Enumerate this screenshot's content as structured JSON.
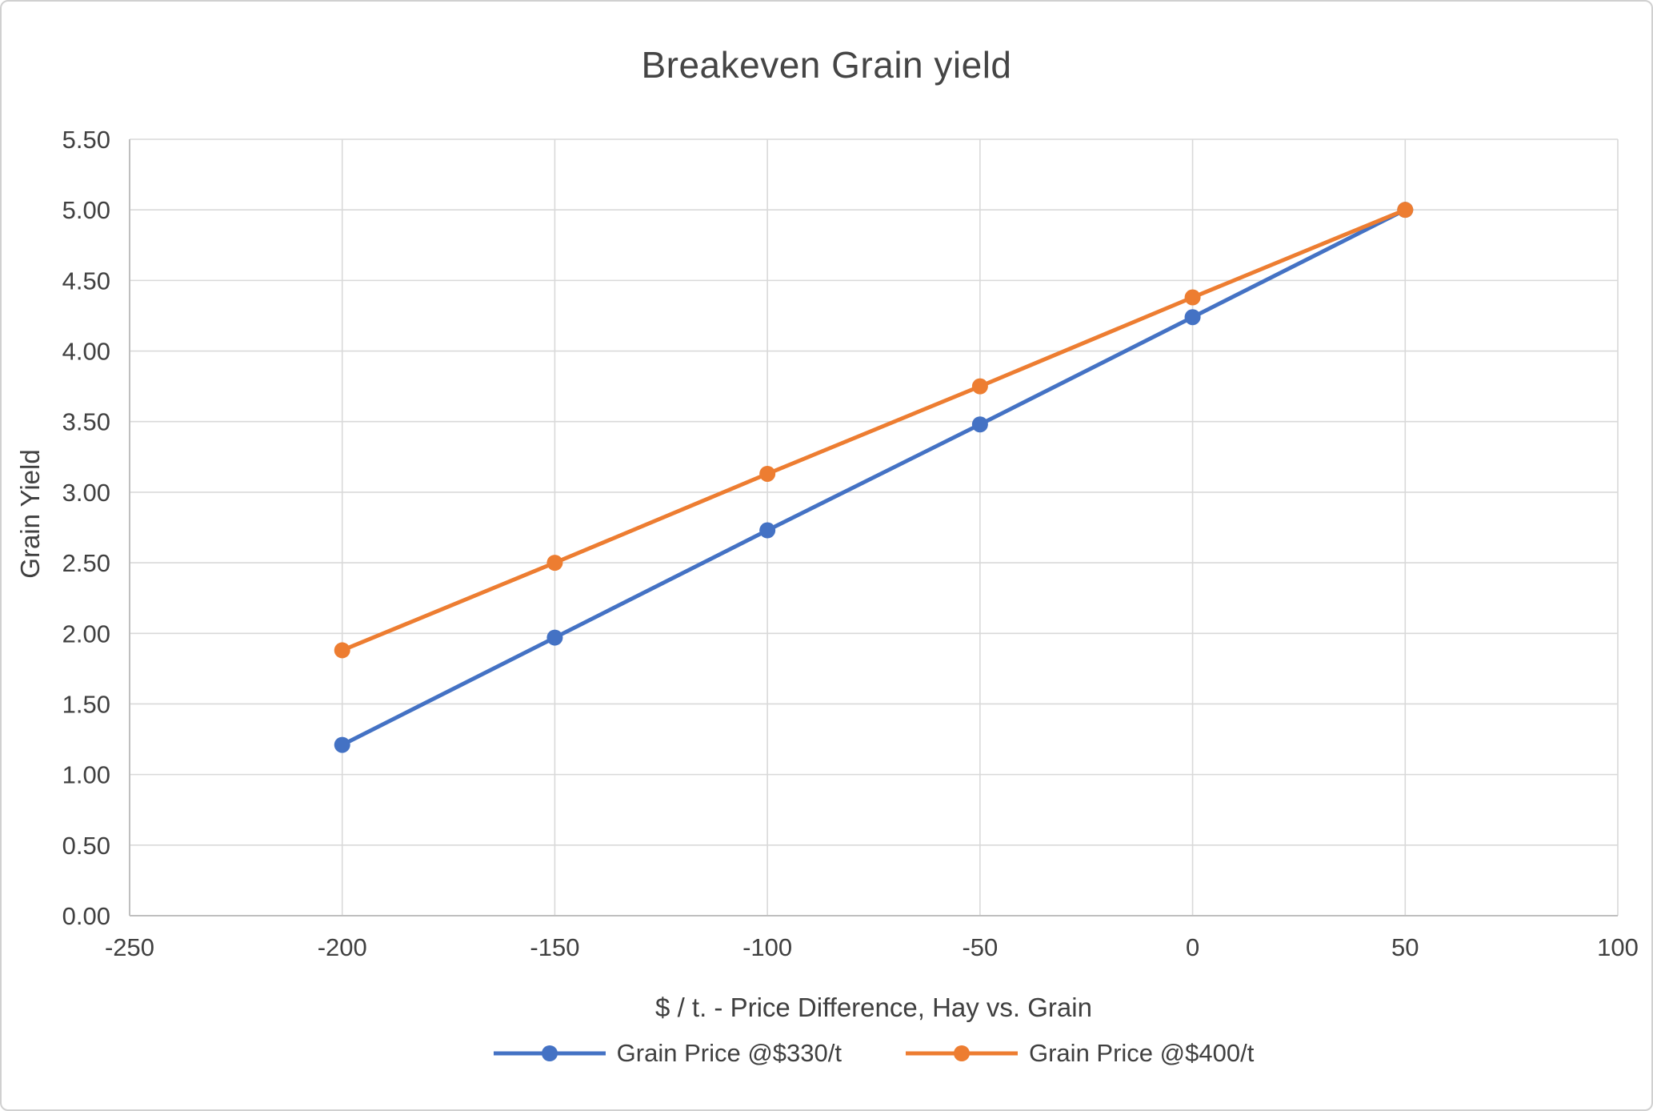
{
  "chart": {
    "title": "Breakeven Grain yield",
    "xlabel": "$ / t. - Price Difference, Hay vs. Grain",
    "ylabel": "Grain Yield"
  },
  "chart_data": {
    "type": "line",
    "title": "Breakeven Grain yield",
    "xlabel": "$ / t. - Price Difference, Hay vs. Grain",
    "ylabel": "Grain Yield",
    "x": [
      -200,
      -150,
      -100,
      -50,
      0,
      50
    ],
    "series": [
      {
        "name": "Grain Price @$330/t",
        "color": "#4472C4",
        "values": [
          1.21,
          1.97,
          2.73,
          3.48,
          4.24,
          5.0
        ]
      },
      {
        "name": "Grain Price @$400/t",
        "color": "#ED7D31",
        "values": [
          1.88,
          2.5,
          3.13,
          3.75,
          4.38,
          5.0
        ]
      }
    ],
    "xlim": [
      -250,
      100
    ],
    "ylim": [
      0,
      5.5
    ],
    "x_ticks": [
      -250,
      -200,
      -150,
      -100,
      -50,
      0,
      50,
      100
    ],
    "y_ticks": [
      0.0,
      0.5,
      1.0,
      1.5,
      2.0,
      2.5,
      3.0,
      3.5,
      4.0,
      4.5,
      5.0,
      5.5
    ],
    "y_tick_decimals": 2,
    "grid": true,
    "legend_position": "bottom",
    "colors": {
      "gridline": "#D9D9D9",
      "axis_line": "#BFBFBF",
      "tick_label": "#404040",
      "title_text": "#454545"
    }
  }
}
